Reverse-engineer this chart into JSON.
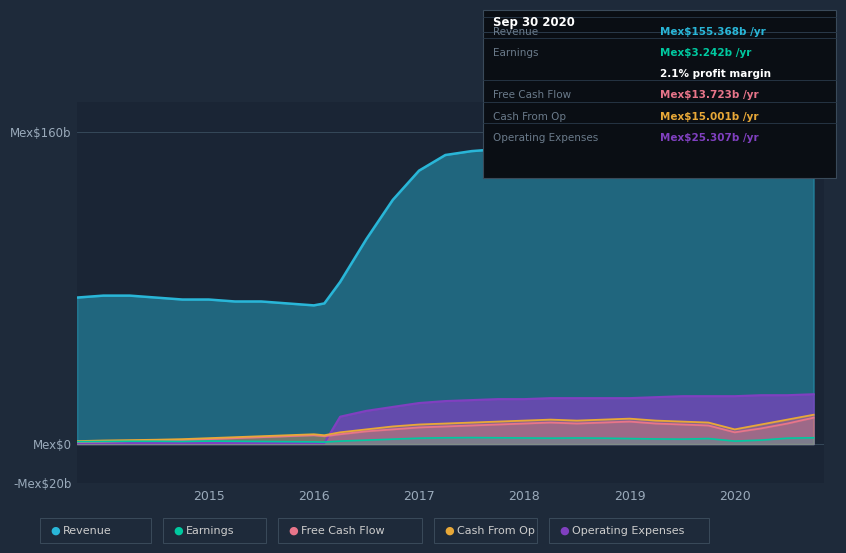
{
  "background_color": "#1e2a3a",
  "plot_bg_color": "#1a2535",
  "ylim": [
    -20,
    175
  ],
  "yticks": [
    -20,
    0,
    160
  ],
  "ytick_labels": [
    "-Mex$20b",
    "Mex$0",
    "Mex$160b"
  ],
  "xticks": [
    2015,
    2016,
    2017,
    2018,
    2019,
    2020
  ],
  "colors": {
    "revenue": "#29b6d8",
    "earnings": "#00c9a0",
    "free_cash_flow": "#e8758a",
    "cash_from_op": "#e8a838",
    "operating_expenses": "#8040c0"
  },
  "info_box": {
    "title": "Sep 30 2020",
    "revenue_label": "Revenue",
    "revenue_value": "Mex$155.368b /yr",
    "earnings_label": "Earnings",
    "earnings_value": "Mex$3.242b /yr",
    "profit_margin": "2.1% profit margin",
    "fcf_label": "Free Cash Flow",
    "fcf_value": "Mex$13.723b /yr",
    "cashop_label": "Cash From Op",
    "cashop_value": "Mex$15.001b /yr",
    "opex_label": "Operating Expenses",
    "opex_value": "Mex$25.307b /yr"
  },
  "legend": [
    "Revenue",
    "Earnings",
    "Free Cash Flow",
    "Cash From Op",
    "Operating Expenses"
  ],
  "x": [
    2013.75,
    2014.0,
    2014.25,
    2014.5,
    2014.75,
    2015.0,
    2015.25,
    2015.5,
    2015.75,
    2016.0,
    2016.1,
    2016.25,
    2016.5,
    2016.75,
    2017.0,
    2017.25,
    2017.5,
    2017.75,
    2018.0,
    2018.25,
    2018.5,
    2018.75,
    2019.0,
    2019.25,
    2019.5,
    2019.75,
    2020.0,
    2020.25,
    2020.5,
    2020.75
  ],
  "revenue": [
    75,
    76,
    76,
    75,
    74,
    74,
    73,
    73,
    72,
    71,
    72,
    83,
    105,
    125,
    140,
    148,
    150,
    151,
    151,
    151,
    152,
    152,
    152,
    153,
    153,
    154,
    154,
    155,
    156,
    158
  ],
  "earnings": [
    1.2,
    1.3,
    1.4,
    1.4,
    1.3,
    1.5,
    1.4,
    1.3,
    1.2,
    1.1,
    1.0,
    1.5,
    2.0,
    2.5,
    3.0,
    3.2,
    3.3,
    3.2,
    3.1,
    3.0,
    3.1,
    3.0,
    2.8,
    2.6,
    2.5,
    2.8,
    1.5,
    2.0,
    3.0,
    3.2
  ],
  "free_cash_flow": [
    1.0,
    1.2,
    1.5,
    1.8,
    2.0,
    2.5,
    3.0,
    3.5,
    4.0,
    4.5,
    4.0,
    5.0,
    6.5,
    7.5,
    8.5,
    9.0,
    9.5,
    10.0,
    10.5,
    11.0,
    10.5,
    11.0,
    11.5,
    10.5,
    10.0,
    9.5,
    6.0,
    8.0,
    10.5,
    13.5
  ],
  "cash_from_op": [
    1.5,
    1.8,
    2.0,
    2.2,
    2.5,
    3.0,
    3.5,
    4.0,
    4.5,
    5.0,
    4.5,
    6.0,
    7.5,
    9.0,
    10.0,
    10.5,
    11.0,
    11.5,
    12.0,
    12.5,
    12.0,
    12.5,
    13.0,
    12.0,
    11.5,
    11.0,
    7.5,
    10.0,
    12.5,
    15.0
  ],
  "operating_expenses": [
    0.5,
    0.5,
    0.5,
    0.5,
    0.5,
    0.5,
    0.5,
    0.5,
    0.5,
    0.5,
    0.5,
    14.0,
    17.0,
    19.0,
    21.0,
    22.0,
    22.5,
    23.0,
    23.0,
    23.5,
    23.5,
    23.5,
    23.5,
    24.0,
    24.5,
    24.5,
    24.5,
    25.0,
    25.0,
    25.5
  ]
}
